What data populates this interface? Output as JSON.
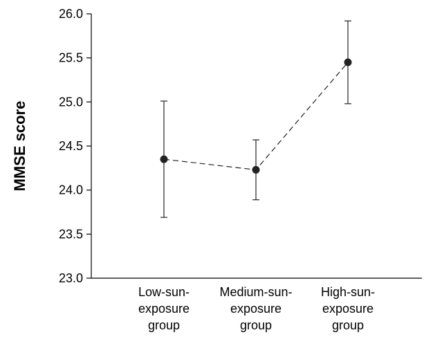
{
  "chart_data": {
    "type": "line",
    "title": "",
    "xlabel": "",
    "ylabel": "MMSE score",
    "ylim": [
      23.0,
      26.0
    ],
    "yticks": [
      23.0,
      23.5,
      24.0,
      24.5,
      25.0,
      25.5,
      26.0
    ],
    "ytick_labels": [
      "23.0",
      "23.5",
      "24.0",
      "24.5",
      "25.0",
      "25.5",
      "26.0"
    ],
    "categories": [
      [
        "Low-sun-",
        "exposure",
        "group"
      ],
      [
        "Medium-sun-",
        "exposure",
        "group"
      ],
      [
        "High-sun-",
        "exposure",
        "group"
      ]
    ],
    "series": [
      {
        "values": [
          24.35,
          24.23,
          25.45
        ],
        "error_low": [
          23.69,
          23.89,
          24.98
        ],
        "error_high": [
          25.01,
          24.57,
          25.92
        ],
        "line_style": "dashed",
        "marker": "circle",
        "color": "#222222"
      }
    ],
    "grid": false,
    "legend": "none"
  }
}
